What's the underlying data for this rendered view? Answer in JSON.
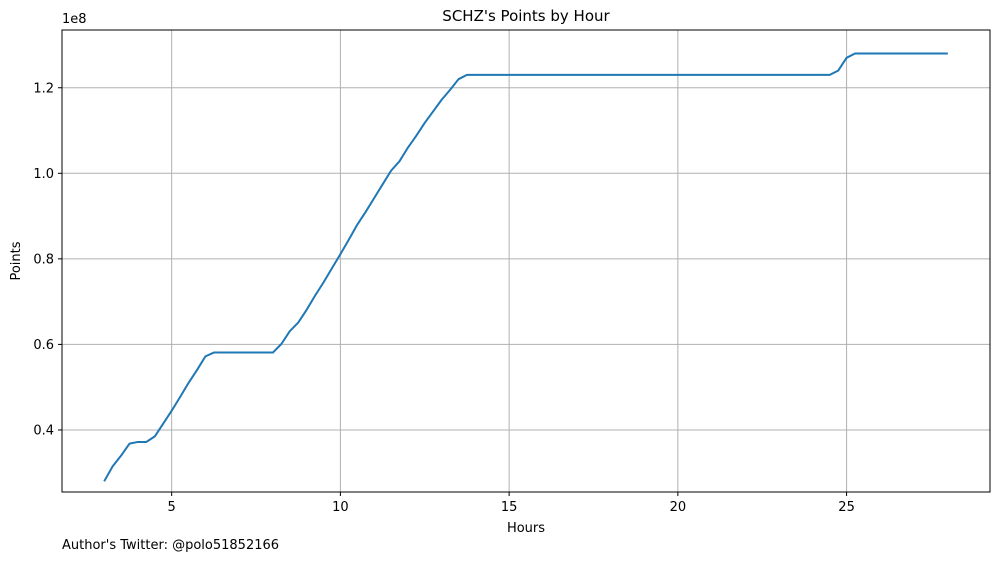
{
  "chart_data": {
    "type": "line",
    "title": "SCHZ's Points by Hour",
    "xlabel": "Hours",
    "ylabel": "Points",
    "y_offset_label": "1e8",
    "xlim": [
      1.75,
      29.25
    ],
    "ylim": [
      0.255,
      1.335
    ],
    "xticks": [
      5,
      10,
      15,
      20,
      25
    ],
    "xtick_labels": [
      "5",
      "10",
      "15",
      "20",
      "25"
    ],
    "yticks": [
      0.4,
      0.6,
      0.8,
      1.0,
      1.2
    ],
    "ytick_labels": [
      "0.4",
      "0.6",
      "0.8",
      "1.0",
      "1.2"
    ],
    "grid": true,
    "line_color": "#1f77b4",
    "series": [
      {
        "x": [
          3.0,
          3.25,
          3.5,
          3.75,
          4.0,
          4.25,
          4.5,
          4.75,
          5.0,
          5.25,
          5.5,
          5.75,
          6.0,
          6.25,
          6.5,
          6.75,
          7.0,
          7.25,
          7.5,
          7.75,
          8.0,
          8.25,
          8.5,
          8.75,
          9.0,
          9.25,
          9.5,
          9.75,
          10.0,
          10.25,
          10.5,
          10.75,
          11.0,
          11.25,
          11.5,
          11.75,
          12.0,
          12.25,
          12.5,
          12.75,
          13.0,
          13.25,
          13.5,
          13.75,
          14.0,
          15.0,
          16.0,
          17.0,
          18.0,
          19.0,
          20.0,
          21.0,
          22.0,
          23.0,
          24.0,
          24.5,
          24.75,
          25.0,
          25.25,
          25.5,
          26.0,
          27.0,
          28.0
        ],
        "y": [
          0.28,
          0.315,
          0.34,
          0.368,
          0.372,
          0.372,
          0.385,
          0.415,
          0.445,
          0.477,
          0.51,
          0.54,
          0.572,
          0.581,
          0.581,
          0.581,
          0.581,
          0.581,
          0.581,
          0.581,
          0.581,
          0.601,
          0.631,
          0.651,
          0.681,
          0.714,
          0.745,
          0.778,
          0.811,
          0.845,
          0.88,
          0.91,
          0.942,
          0.974,
          1.006,
          1.028,
          1.06,
          1.088,
          1.118,
          1.145,
          1.172,
          1.195,
          1.22,
          1.23,
          1.23,
          1.23,
          1.23,
          1.23,
          1.23,
          1.23,
          1.23,
          1.23,
          1.23,
          1.23,
          1.23,
          1.23,
          1.24,
          1.27,
          1.28,
          1.28,
          1.28,
          1.28,
          1.28
        ]
      }
    ]
  },
  "footer": {
    "note": "Author's Twitter: @polo51852166"
  }
}
